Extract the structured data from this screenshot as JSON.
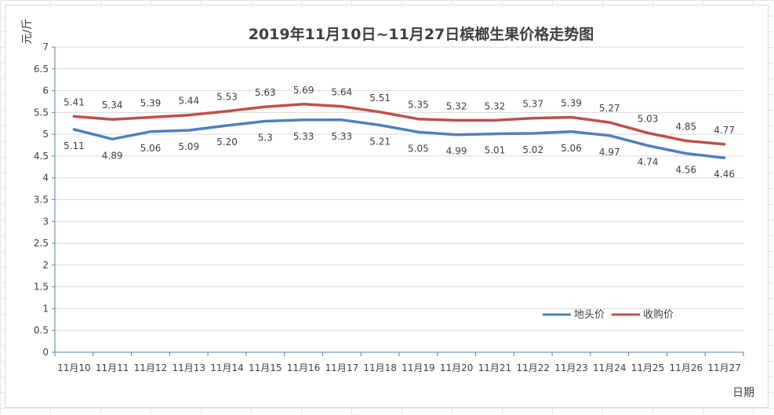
{
  "chart_data": {
    "type": "line",
    "title": "2019年11月10日~11月27日槟榔生果价格走势图",
    "xlabel": "日期",
    "ylabel": "元/斤",
    "ylim": [
      0,
      7
    ],
    "yticks": [
      "0",
      "0.5",
      "1",
      "1.5",
      "2",
      "2.5",
      "3",
      "3.5",
      "4",
      "4.5",
      "5",
      "5.5",
      "6",
      "6.5",
      "7"
    ],
    "grid": true,
    "legend_position": "bottom-right",
    "categories": [
      "11月10",
      "11月11",
      "11月12",
      "11月13",
      "11月14",
      "11月15",
      "11月16",
      "11月17",
      "11月18",
      "11月19",
      "11月20",
      "11月21",
      "11月22",
      "11月23",
      "11月24",
      "11月25",
      "11月26",
      "11月27"
    ],
    "series": [
      {
        "name": "地头价",
        "color": "#4f81bd",
        "values": [
          5.11,
          4.89,
          5.06,
          5.09,
          5.2,
          5.3,
          5.33,
          5.33,
          5.21,
          5.05,
          4.99,
          5.01,
          5.02,
          5.06,
          4.97,
          4.74,
          4.56,
          4.46
        ],
        "labels": [
          "5.11",
          "4.89",
          "5.06",
          "5.09",
          "5.20",
          "5.3",
          "5.33",
          "5.33",
          "5.21",
          "5.05",
          "4.99",
          "5.01",
          "5.02",
          "5.06",
          "4.97",
          "4.74",
          "4.56",
          "4.46"
        ]
      },
      {
        "name": "收购价",
        "color": "#c0504d",
        "values": [
          5.41,
          5.34,
          5.39,
          5.44,
          5.53,
          5.63,
          5.69,
          5.64,
          5.51,
          5.35,
          5.32,
          5.32,
          5.37,
          5.39,
          5.27,
          5.03,
          4.85,
          4.77
        ],
        "labels": [
          "5.41",
          "5.34",
          "5.39",
          "5.44",
          "5.53",
          "5.63",
          "5.69",
          "5.64",
          "5.51",
          "5.35",
          "5.32",
          "5.32",
          "5.37",
          "5.39",
          "5.27",
          "5.03",
          "4.85",
          "4.77"
        ]
      }
    ]
  }
}
